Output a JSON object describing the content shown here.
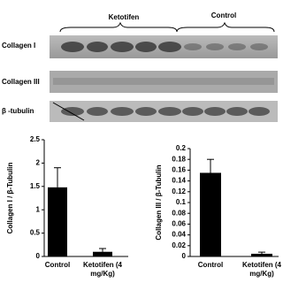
{
  "blot": {
    "groups": [
      "Ketotifen",
      "Control"
    ],
    "rows": [
      "Collagen I",
      "Collagen III",
      "β -tubulin"
    ]
  },
  "chart_data": [
    {
      "type": "bar",
      "ylabel": "Collagen I / β-Tubulin",
      "categories": [
        "Control",
        "Ketotifen (4 mg/Kg)"
      ],
      "values": [
        1.48,
        0.1
      ],
      "errors": [
        0.42,
        0.07
      ],
      "color": "#000000",
      "ylim": [
        0,
        2.5
      ],
      "yticks": [
        0,
        0.5,
        1,
        1.5,
        2,
        2.5
      ]
    },
    {
      "type": "bar",
      "ylabel": "Collagen III / β-Tubulin",
      "categories": [
        "Control",
        "Ketotifen (4 mg/Kg)"
      ],
      "values": [
        0.155,
        0.005
      ],
      "errors": [
        0.025,
        0.003
      ],
      "color": "#000000",
      "ylim": [
        0,
        0.2
      ],
      "yticks": [
        0,
        0.02,
        0.04,
        0.06,
        0.08,
        0.1,
        0.12,
        0.14,
        0.16,
        0.18,
        0.2
      ]
    }
  ]
}
